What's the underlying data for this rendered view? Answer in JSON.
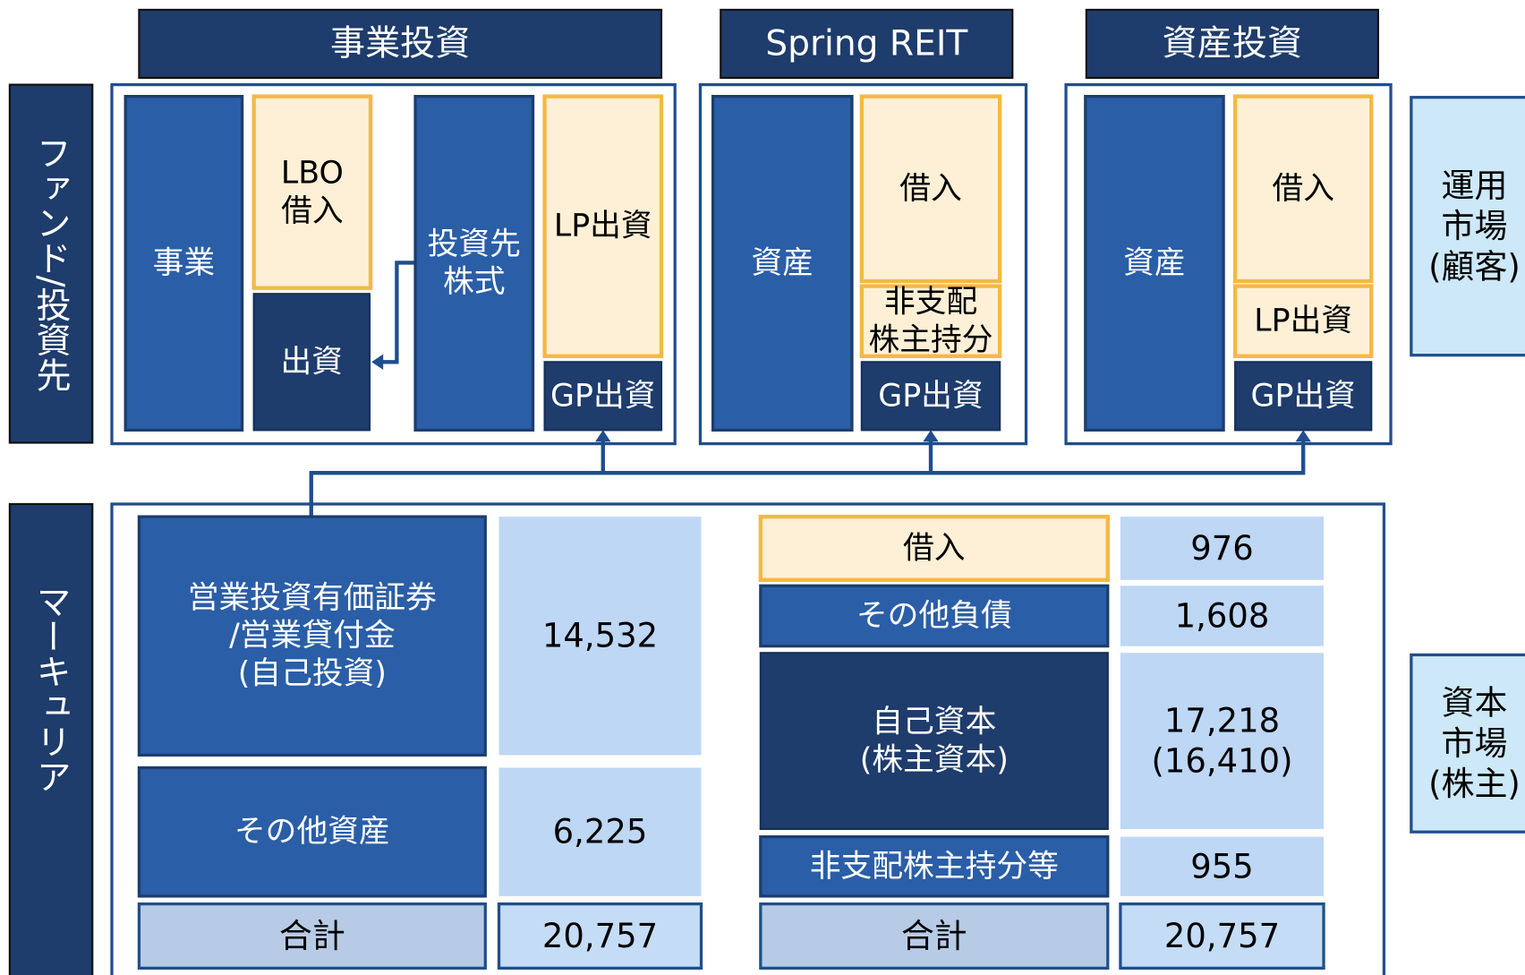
{
  "headers": [
    "事業投資",
    "Spring REIT",
    "資産投資"
  ],
  "side_labels": {
    "funds": "ファンド/投資先",
    "mercuria": "マーキュリア"
  },
  "market_labels": {
    "operation": [
      "運用",
      "市場",
      "(顧客)"
    ],
    "capital": [
      "資本",
      "市場",
      "(株主)"
    ]
  },
  "business_investment": {
    "business": "事業",
    "lbo_loan": [
      "LBO",
      "借入"
    ],
    "equity": "出資",
    "portfolio_shares": [
      "投資先",
      "株式"
    ],
    "lp": "LP出資",
    "gp": "GP出資"
  },
  "spring_reit": {
    "asset": "資産",
    "loan": "借入",
    "nci": [
      "非支配",
      "株主持分"
    ],
    "gp": "GP出資"
  },
  "asset_investment": {
    "asset": "資産",
    "loan": "借入",
    "lp": "LP出資",
    "gp": "GP出資"
  },
  "balance_sheet": {
    "assets": [
      {
        "label": [
          "営業投資有価証券",
          "/営業貸付金",
          "(自己投資)"
        ],
        "value": [
          "14,532"
        ]
      },
      {
        "label": [
          "その他資産"
        ],
        "value": [
          "6,225"
        ]
      }
    ],
    "assets_total": {
      "label": [
        "合計"
      ],
      "value": [
        "20,757"
      ]
    },
    "liabilities": [
      {
        "label": [
          "借入"
        ],
        "value": [
          "976"
        ]
      },
      {
        "label": [
          "その他負債"
        ],
        "value": [
          "1,608"
        ]
      },
      {
        "label": [
          "自己資本",
          "(株主資本)"
        ],
        "value": [
          "17,218",
          "(16,410)"
        ]
      },
      {
        "label": [
          "非支配株主持分等"
        ],
        "value": [
          "955"
        ]
      }
    ],
    "liabilities_total": {
      "label": [
        "合計"
      ],
      "value": [
        "20,757"
      ]
    }
  }
}
